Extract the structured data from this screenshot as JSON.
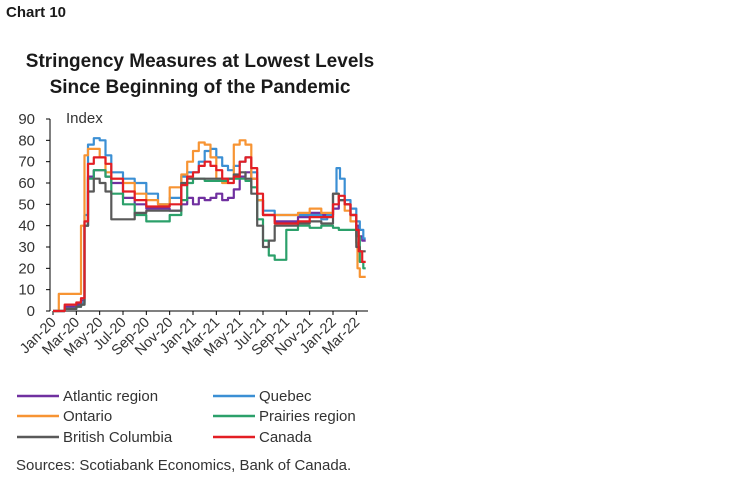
{
  "figure_label": "Chart 10",
  "source": "Sources: Scotiabank Economics, Bank of Canada.",
  "chart_data": {
    "type": "line",
    "title": "Stringency Measures at Lowest Levels Since Beginning of the Pandemic",
    "title_lines": [
      "Stringency Measures at Lowest Levels",
      "Since Beginning of the Pandemic"
    ],
    "ylabel": "Index",
    "xlabel": "",
    "ylim": [
      0,
      90
    ],
    "xlim": [
      0,
      27
    ],
    "yticks": [
      0,
      10,
      20,
      30,
      40,
      50,
      60,
      70,
      80,
      90
    ],
    "x_tick_positions": [
      0,
      2,
      4,
      6,
      8,
      10,
      12,
      14,
      16,
      18,
      20,
      22,
      24,
      26
    ],
    "x_tick_labels": [
      "Jan-20",
      "Mar-20",
      "May-20",
      "Jul-20",
      "Sep-20",
      "Nov-20",
      "Jan-21",
      "Mar-21",
      "May-21",
      "Jul-21",
      "Sep-21",
      "Nov-21",
      "Jan-22",
      "Mar-22"
    ],
    "x_units": "months since Jan-2020",
    "grid": false,
    "legend_position": "bottom",
    "series": [
      {
        "name": "Atlantic region",
        "color": "#7030a0",
        "x": [
          0,
          1,
          2,
          2.4,
          2.7,
          3,
          3.5,
          4,
          4.5,
          5,
          6,
          7,
          8,
          9,
          10,
          11,
          11.5,
          12,
          12.5,
          13,
          13.5,
          14,
          14.5,
          15,
          15.5,
          16,
          16.5,
          17,
          17.5,
          18,
          19,
          20,
          21,
          22,
          23,
          24,
          24.5,
          25,
          25.5,
          26,
          26.2,
          26.5,
          26.8
        ],
        "y": [
          0,
          2,
          3,
          5,
          40,
          63,
          66,
          66,
          63,
          60,
          53,
          50,
          48,
          48,
          47,
          50,
          53,
          50,
          53,
          52,
          53,
          55,
          52,
          53,
          57,
          63,
          65,
          62,
          52,
          45,
          42,
          42,
          44,
          46,
          45,
          48,
          52,
          50,
          45,
          40,
          35,
          33,
          33
        ]
      },
      {
        "name": "Quebec",
        "color": "#3b8fd4",
        "x": [
          0,
          1,
          2,
          2.4,
          2.7,
          3,
          3.5,
          4,
          4.5,
          5,
          6,
          7,
          8,
          9,
          10,
          11,
          11.5,
          12,
          12.5,
          13,
          13.5,
          14,
          14.5,
          15,
          15.5,
          16,
          16.5,
          17,
          17.5,
          18,
          19,
          20,
          21,
          22,
          23,
          23.5,
          24,
          24.3,
          24.6,
          25,
          25.5,
          26,
          26.3,
          26.6,
          26.8
        ],
        "y": [
          0,
          1,
          2,
          4,
          45,
          78,
          81,
          80,
          73,
          65,
          62,
          60,
          55,
          50,
          53,
          63,
          65,
          65,
          70,
          75,
          76,
          72,
          68,
          66,
          68,
          70,
          72,
          65,
          52,
          47,
          45,
          45,
          45,
          45,
          43,
          45,
          55,
          67,
          62,
          52,
          48,
          42,
          38,
          34,
          34
        ]
      },
      {
        "name": "Ontario",
        "color": "#f79433",
        "x": [
          0,
          0.5,
          1,
          2,
          2.4,
          2.7,
          3,
          3.5,
          4,
          4.5,
          5,
          6,
          7,
          8,
          9,
          10,
          11,
          11.5,
          12,
          12.5,
          13,
          13.5,
          14,
          14.5,
          15,
          15.5,
          16,
          16.5,
          17,
          17.5,
          18,
          19,
          20,
          21,
          22,
          23,
          24,
          24.5,
          25,
          25.5,
          26,
          26.1,
          26.3,
          26.8
        ],
        "y": [
          0,
          8,
          8,
          8,
          40,
          73,
          76,
          76,
          72,
          65,
          62,
          60,
          55,
          52,
          50,
          58,
          64,
          70,
          75,
          79,
          78,
          72,
          62,
          60,
          62,
          78,
          80,
          78,
          62,
          52,
          45,
          45,
          45,
          46,
          48,
          46,
          55,
          52,
          47,
          42,
          32,
          20,
          16,
          16
        ]
      },
      {
        "name": "Prairies region",
        "color": "#2ba06a",
        "x": [
          0,
          1,
          2,
          2.4,
          2.7,
          3,
          3.5,
          4,
          4.5,
          5,
          6,
          7,
          8,
          9,
          10,
          11,
          11.5,
          12,
          12.5,
          13,
          13.5,
          14,
          14.5,
          15,
          15.5,
          16,
          16.5,
          17,
          17.5,
          18,
          18.5,
          19,
          20,
          21,
          22,
          23,
          23.5,
          24,
          24.5,
          25,
          25.5,
          26,
          26.3,
          26.6,
          26.8
        ],
        "y": [
          0,
          1,
          2,
          3,
          40,
          62,
          66,
          66,
          63,
          55,
          50,
          45,
          42,
          42,
          45,
          52,
          60,
          62,
          62,
          61,
          61,
          61,
          61,
          62,
          62,
          62,
          61,
          58,
          43,
          33,
          26,
          24,
          38,
          40,
          39,
          40,
          40,
          39,
          38,
          38,
          38,
          35,
          23,
          20,
          20
        ]
      },
      {
        "name": "British Columbia",
        "color": "#595959",
        "x": [
          0,
          1,
          2,
          2.4,
          2.7,
          3,
          3.5,
          4,
          4.5,
          5,
          6,
          7,
          8,
          9,
          10,
          11,
          11.5,
          12,
          12.5,
          13,
          13.5,
          14,
          14.5,
          15,
          15.5,
          16,
          16.5,
          17,
          17.5,
          18,
          18.5,
          19,
          20,
          21,
          22,
          23,
          24,
          24.5,
          25,
          25.5,
          26,
          26.3,
          26.8
        ],
        "y": [
          0,
          1,
          2,
          3,
          40,
          56,
          62,
          60,
          56,
          43,
          43,
          46,
          47,
          47,
          47,
          60,
          62,
          62,
          62,
          62,
          62,
          62,
          62,
          62,
          64,
          65,
          62,
          55,
          40,
          30,
          33,
          40,
          40,
          41,
          42,
          41,
          55,
          52,
          50,
          45,
          30,
          28,
          28
        ]
      },
      {
        "name": "Canada",
        "color": "#e31e24",
        "x": [
          0,
          1,
          2,
          2.4,
          2.7,
          3,
          3.5,
          4,
          4.5,
          5,
          6,
          7,
          8,
          9,
          10,
          11,
          11.5,
          12,
          12.5,
          13,
          13.5,
          14,
          14.5,
          15,
          15.5,
          16,
          16.5,
          17,
          17.5,
          18,
          19,
          20,
          21,
          22,
          23,
          24,
          24.5,
          25,
          25.5,
          26,
          26.2,
          26.5,
          26.8
        ],
        "y": [
          0,
          3,
          4,
          6,
          42,
          69,
          72,
          72,
          69,
          62,
          56,
          52,
          49,
          49,
          50,
          59,
          63,
          65,
          68,
          70,
          68,
          66,
          62,
          60,
          63,
          70,
          72,
          67,
          55,
          45,
          41,
          41,
          42,
          44,
          44,
          50,
          54,
          50,
          45,
          38,
          28,
          23,
          23
        ]
      }
    ]
  }
}
